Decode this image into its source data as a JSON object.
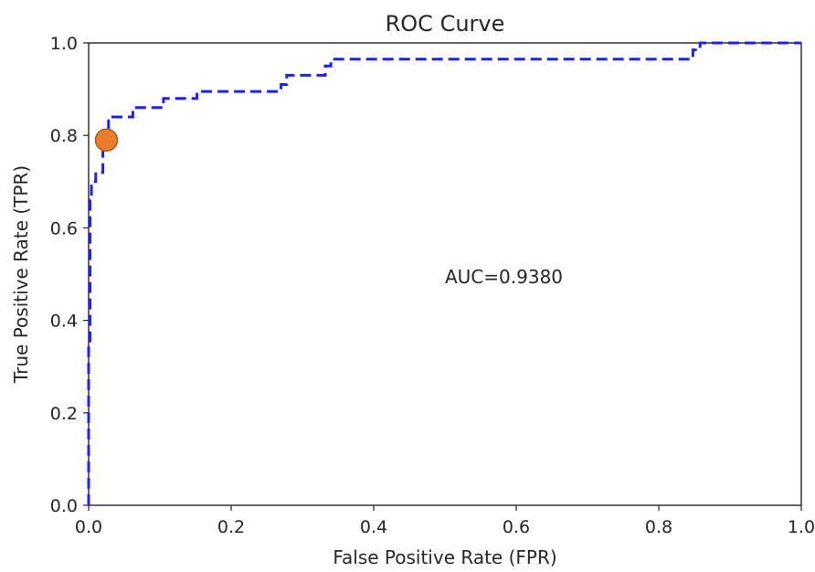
{
  "chart_data": {
    "type": "line",
    "title": "ROC Curve",
    "xlabel": "False Positive Rate (FPR)",
    "ylabel": "True Positive Rate (TPR)",
    "xlim": [
      0.0,
      1.0
    ],
    "ylim": [
      0.0,
      1.0
    ],
    "x_ticks": [
      "0.0",
      "0.2",
      "0.4",
      "0.6",
      "0.8",
      "1.0"
    ],
    "y_ticks": [
      "0.0",
      "0.2",
      "0.4",
      "0.6",
      "0.8",
      "1.0"
    ],
    "grid": false,
    "annotation": "AUC=0.9380",
    "annotation_position": {
      "x": 0.5,
      "y": 0.5
    },
    "series": [
      {
        "style": "dashed",
        "color": "#1f1fff",
        "x": [
          0.0,
          0.0,
          0.002,
          0.002,
          0.004,
          0.004,
          0.01,
          0.01,
          0.02,
          0.02,
          0.028,
          0.028,
          0.062,
          0.062,
          0.105,
          0.105,
          0.152,
          0.152,
          0.27,
          0.27,
          0.278,
          0.278,
          0.332,
          0.332,
          0.34,
          0.34,
          0.848,
          0.848,
          0.858,
          0.858,
          1.0
        ],
        "y": [
          0.0,
          0.35,
          0.35,
          0.66,
          0.66,
          0.7,
          0.7,
          0.72,
          0.72,
          0.77,
          0.77,
          0.84,
          0.84,
          0.86,
          0.86,
          0.88,
          0.88,
          0.895,
          0.895,
          0.91,
          0.91,
          0.93,
          0.93,
          0.95,
          0.95,
          0.965,
          0.965,
          0.985,
          0.985,
          1.0,
          1.0
        ]
      }
    ],
    "marker": {
      "x": 0.025,
      "y": 0.79,
      "color": "#e87d2f",
      "edge": "#b05a14"
    }
  }
}
